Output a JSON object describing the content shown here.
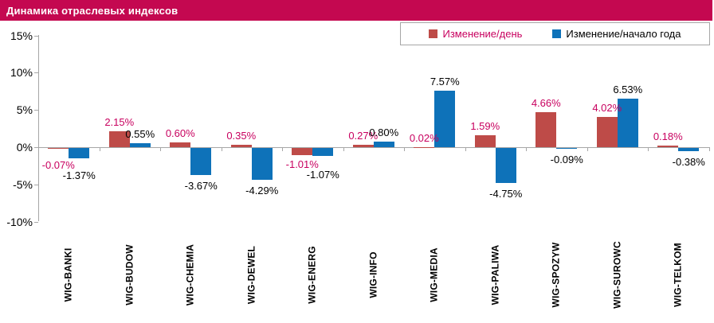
{
  "header": {
    "title": "Динамика отраслевых индексов"
  },
  "colors": {
    "header_bg": "#C40850",
    "series_day": "#BE4B48",
    "series_ytd": "#0E72B9",
    "label_day_text": "#C8005F",
    "label_ytd_text": "#000000",
    "axis_line": "#A6A6A6",
    "legend_border": "#A6A6A6"
  },
  "chart_data": {
    "type": "bar",
    "title": "Динамика отраслевых индексов",
    "categories": [
      "WIG-BANKI",
      "WIG-BUDOW",
      "WIG-CHEMIA",
      "WIG-DEWEL",
      "WIG-ENERG",
      "WIG-INFO",
      "WIG-MEDIA",
      "WIG-PALIWA",
      "WIG-SPOZYW",
      "WIG-SUROWC",
      "WIG-TELKOM"
    ],
    "series": [
      {
        "name": "Изменение/день",
        "color": "#BE4B48",
        "label_color": "#C8005F",
        "values": [
          -0.07,
          2.15,
          0.6,
          0.35,
          -1.01,
          0.27,
          0.02,
          1.59,
          4.66,
          4.02,
          0.18
        ],
        "labels": [
          "-0.07%",
          "2.15%",
          "0.60%",
          "0.35%",
          "-1.01%",
          "0.27%",
          "0.02%",
          "1.59%",
          "4.66%",
          "4.02%",
          "0.18%"
        ]
      },
      {
        "name": "Изменение/начало года",
        "color": "#0E72B9",
        "label_color": "#000000",
        "values": [
          -1.37,
          0.55,
          -3.67,
          -4.29,
          -1.07,
          0.8,
          7.57,
          -4.75,
          -0.09,
          6.53,
          -0.38
        ],
        "labels": [
          "-1.37%",
          "0.55%",
          "-3.67%",
          "-4.29%",
          "-1.07%",
          "0.80%",
          "7.57%",
          "-4.75%",
          "-0.09%",
          "6.53%",
          "-0.38%"
        ]
      }
    ],
    "xlabel": "",
    "ylabel": "",
    "ylim": [
      -10,
      15
    ],
    "y_ticks": [
      "15%",
      "10%",
      "5%",
      "0%",
      "-5%",
      "-10%"
    ],
    "y_tick_values": [
      15,
      10,
      5,
      0,
      -5,
      -10
    ],
    "grid": false,
    "legend_position": "top-right"
  }
}
